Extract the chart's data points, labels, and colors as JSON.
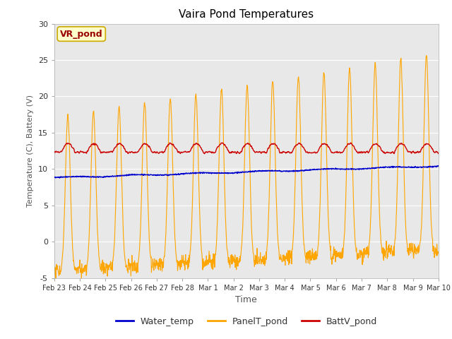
{
  "title": "Vaira Pond Temperatures",
  "xlabel": "Time",
  "ylabel": "Temperature (C), Battery (V)",
  "ylim": [
    -5,
    30
  ],
  "xlim": [
    0,
    15
  ],
  "annotation_text": "VR_pond",
  "legend_labels": [
    "Water_temp",
    "PanelT_pond",
    "BattV_pond"
  ],
  "water_temp_color": "#0000cc",
  "panel_temp_color": "#ffa500",
  "batt_color": "#cc0000",
  "fig_facecolor": "#ffffff",
  "plot_facecolor": "#e8e8e8",
  "grid_color": "#ffffff",
  "xtick_labels": [
    "Feb 23",
    "Feb 24",
    "Feb 25",
    "Feb 26",
    "Feb 27",
    "Feb 28",
    "Mar 1",
    "Mar 2",
    "Mar 3",
    "Mar 4",
    "Mar 5",
    "Mar 6",
    "Mar 7",
    "Mar 8",
    "Mar 9",
    "Mar 10"
  ],
  "ytick_values": [
    -5,
    0,
    5,
    10,
    15,
    20,
    25,
    30
  ],
  "n_days": 15,
  "n_per_day": 96
}
